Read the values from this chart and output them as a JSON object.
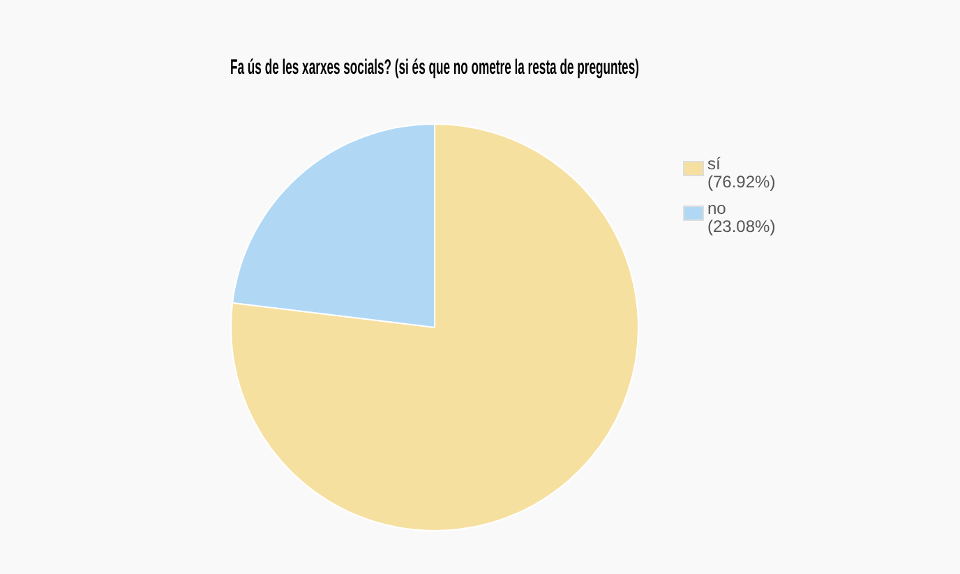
{
  "chart_data": {
    "type": "pie",
    "title": "Fa ús de les xarxes socials? (si és que no ometre la resta de preguntes)",
    "categories": [
      "sí",
      "no"
    ],
    "values": [
      76.92,
      23.08
    ],
    "value_labels": [
      "(76.92%)",
      "(23.08%)"
    ],
    "colors": [
      "#f6e0a0",
      "#b0d8f5"
    ],
    "legend": "right"
  }
}
